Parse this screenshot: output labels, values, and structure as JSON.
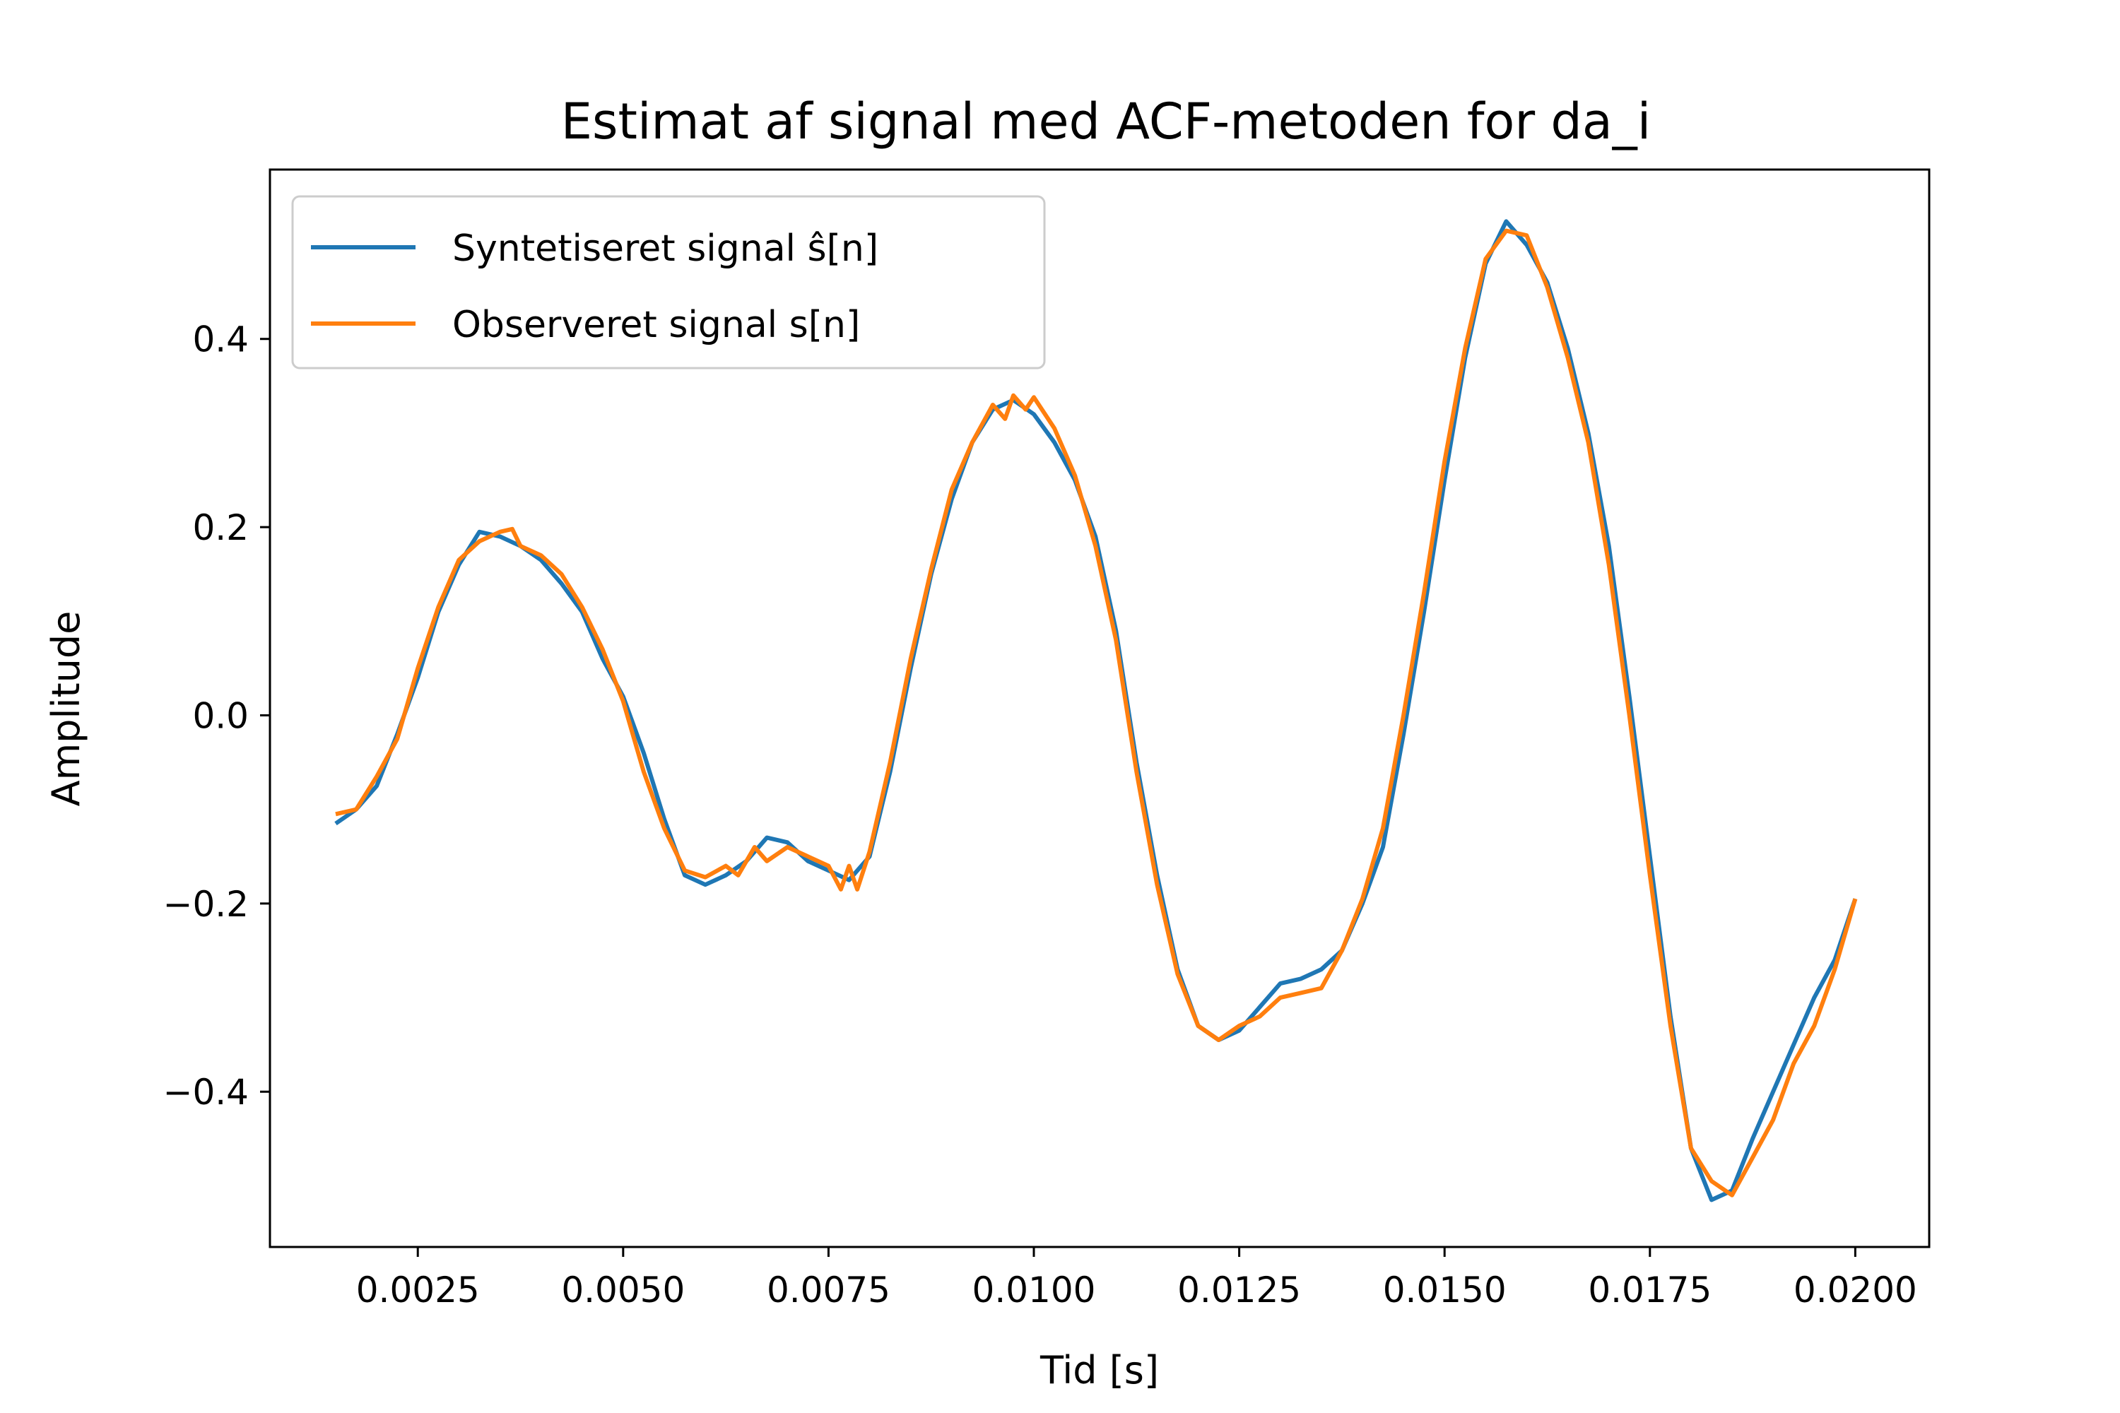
{
  "chart_data": {
    "type": "line",
    "title": "Estimat af signal med ACF-metoden for da_i",
    "xlabel": "Tid [s]",
    "ylabel": "Amplitude",
    "xlim": [
      0.0007,
      0.0209
    ],
    "ylim": [
      -0.565,
      0.58
    ],
    "xticks": [
      {
        "value": 0.0025,
        "label": "0.0025"
      },
      {
        "value": 0.005,
        "label": "0.0050"
      },
      {
        "value": 0.0075,
        "label": "0.0075"
      },
      {
        "value": 0.01,
        "label": "0.0100"
      },
      {
        "value": 0.0125,
        "label": "0.0125"
      },
      {
        "value": 0.015,
        "label": "0.0150"
      },
      {
        "value": 0.0175,
        "label": "0.0175"
      },
      {
        "value": 0.02,
        "label": "0.0200"
      }
    ],
    "yticks": [
      {
        "value": 0.4,
        "label": "0.4"
      },
      {
        "value": 0.2,
        "label": "0.2"
      },
      {
        "value": 0.0,
        "label": "0.0"
      },
      {
        "value": -0.2,
        "label": "−0.2"
      },
      {
        "value": -0.4,
        "label": "−0.4"
      }
    ],
    "grid": false,
    "legend_position": "top-left",
    "series": [
      {
        "name": "Syntetiseret signal ŝ[n]",
        "color": "#1f77b4",
        "points": [
          [
            0.0015,
            -0.115
          ],
          [
            0.00175,
            -0.1
          ],
          [
            0.002,
            -0.075
          ],
          [
            0.00225,
            -0.02
          ],
          [
            0.0025,
            0.04
          ],
          [
            0.00275,
            0.11
          ],
          [
            0.003,
            0.16
          ],
          [
            0.00325,
            0.195
          ],
          [
            0.0035,
            0.19
          ],
          [
            0.00375,
            0.18
          ],
          [
            0.004,
            0.165
          ],
          [
            0.00425,
            0.14
          ],
          [
            0.0045,
            0.11
          ],
          [
            0.00475,
            0.06
          ],
          [
            0.005,
            0.02
          ],
          [
            0.00525,
            -0.04
          ],
          [
            0.0055,
            -0.11
          ],
          [
            0.00575,
            -0.17
          ],
          [
            0.006,
            -0.18
          ],
          [
            0.00625,
            -0.17
          ],
          [
            0.0065,
            -0.155
          ],
          [
            0.00675,
            -0.13
          ],
          [
            0.007,
            -0.135
          ],
          [
            0.00725,
            -0.155
          ],
          [
            0.0075,
            -0.165
          ],
          [
            0.00775,
            -0.175
          ],
          [
            0.008,
            -0.15
          ],
          [
            0.00825,
            -0.06
          ],
          [
            0.0085,
            0.05
          ],
          [
            0.00875,
            0.15
          ],
          [
            0.009,
            0.23
          ],
          [
            0.00925,
            0.29
          ],
          [
            0.0095,
            0.325
          ],
          [
            0.00975,
            0.335
          ],
          [
            0.01,
            0.32
          ],
          [
            0.01025,
            0.29
          ],
          [
            0.0105,
            0.25
          ],
          [
            0.01075,
            0.19
          ],
          [
            0.011,
            0.09
          ],
          [
            0.01125,
            -0.05
          ],
          [
            0.0115,
            -0.17
          ],
          [
            0.01175,
            -0.27
          ],
          [
            0.012,
            -0.33
          ],
          [
            0.01225,
            -0.345
          ],
          [
            0.0125,
            -0.335
          ],
          [
            0.01275,
            -0.31
          ],
          [
            0.013,
            -0.285
          ],
          [
            0.01325,
            -0.28
          ],
          [
            0.0135,
            -0.27
          ],
          [
            0.01375,
            -0.25
          ],
          [
            0.014,
            -0.2
          ],
          [
            0.01425,
            -0.14
          ],
          [
            0.0145,
            -0.02
          ],
          [
            0.01475,
            0.11
          ],
          [
            0.015,
            0.25
          ],
          [
            0.01525,
            0.38
          ],
          [
            0.0155,
            0.48
          ],
          [
            0.01575,
            0.525
          ],
          [
            0.016,
            0.5
          ],
          [
            0.01625,
            0.46
          ],
          [
            0.0165,
            0.39
          ],
          [
            0.01675,
            0.3
          ],
          [
            0.017,
            0.18
          ],
          [
            0.01725,
            0.02
          ],
          [
            0.0175,
            -0.15
          ],
          [
            0.01775,
            -0.32
          ],
          [
            0.018,
            -0.46
          ],
          [
            0.01825,
            -0.515
          ],
          [
            0.0185,
            -0.505
          ],
          [
            0.01875,
            -0.45
          ],
          [
            0.019,
            -0.4
          ],
          [
            0.01925,
            -0.35
          ],
          [
            0.0195,
            -0.3
          ],
          [
            0.01975,
            -0.26
          ],
          [
            0.02,
            -0.195
          ]
        ]
      },
      {
        "name": "Observeret signal s[n]",
        "color": "#ff7f0e",
        "points": [
          [
            0.0015,
            -0.105
          ],
          [
            0.00175,
            -0.1
          ],
          [
            0.002,
            -0.065
          ],
          [
            0.00225,
            -0.025
          ],
          [
            0.0025,
            0.05
          ],
          [
            0.00275,
            0.115
          ],
          [
            0.003,
            0.165
          ],
          [
            0.00325,
            0.185
          ],
          [
            0.0035,
            0.195
          ],
          [
            0.00365,
            0.198
          ],
          [
            0.00375,
            0.18
          ],
          [
            0.004,
            0.17
          ],
          [
            0.00425,
            0.15
          ],
          [
            0.0045,
            0.115
          ],
          [
            0.00475,
            0.07
          ],
          [
            0.005,
            0.015
          ],
          [
            0.00525,
            -0.06
          ],
          [
            0.0055,
            -0.12
          ],
          [
            0.00575,
            -0.165
          ],
          [
            0.006,
            -0.172
          ],
          [
            0.00625,
            -0.16
          ],
          [
            0.0064,
            -0.17
          ],
          [
            0.0066,
            -0.14
          ],
          [
            0.00675,
            -0.155
          ],
          [
            0.007,
            -0.14
          ],
          [
            0.00725,
            -0.15
          ],
          [
            0.0075,
            -0.16
          ],
          [
            0.00765,
            -0.185
          ],
          [
            0.00775,
            -0.16
          ],
          [
            0.00785,
            -0.185
          ],
          [
            0.008,
            -0.145
          ],
          [
            0.00825,
            -0.05
          ],
          [
            0.0085,
            0.06
          ],
          [
            0.00875,
            0.155
          ],
          [
            0.009,
            0.24
          ],
          [
            0.00925,
            0.29
          ],
          [
            0.0095,
            0.33
          ],
          [
            0.00965,
            0.315
          ],
          [
            0.00975,
            0.34
          ],
          [
            0.0099,
            0.325
          ],
          [
            0.01,
            0.338
          ],
          [
            0.01025,
            0.305
          ],
          [
            0.0105,
            0.255
          ],
          [
            0.01075,
            0.18
          ],
          [
            0.011,
            0.08
          ],
          [
            0.01125,
            -0.06
          ],
          [
            0.0115,
            -0.18
          ],
          [
            0.01175,
            -0.275
          ],
          [
            0.012,
            -0.33
          ],
          [
            0.01225,
            -0.345
          ],
          [
            0.0125,
            -0.33
          ],
          [
            0.01275,
            -0.32
          ],
          [
            0.013,
            -0.3
          ],
          [
            0.01325,
            -0.295
          ],
          [
            0.0135,
            -0.29
          ],
          [
            0.01375,
            -0.25
          ],
          [
            0.014,
            -0.195
          ],
          [
            0.01425,
            -0.12
          ],
          [
            0.0145,
            0.0
          ],
          [
            0.01475,
            0.13
          ],
          [
            0.015,
            0.27
          ],
          [
            0.01525,
            0.39
          ],
          [
            0.0155,
            0.485
          ],
          [
            0.01575,
            0.515
          ],
          [
            0.016,
            0.51
          ],
          [
            0.01625,
            0.455
          ],
          [
            0.0165,
            0.38
          ],
          [
            0.01675,
            0.29
          ],
          [
            0.017,
            0.16
          ],
          [
            0.01725,
            0.0
          ],
          [
            0.0175,
            -0.17
          ],
          [
            0.01775,
            -0.33
          ],
          [
            0.018,
            -0.46
          ],
          [
            0.01825,
            -0.495
          ],
          [
            0.0185,
            -0.51
          ],
          [
            0.01875,
            -0.47
          ],
          [
            0.019,
            -0.43
          ],
          [
            0.01925,
            -0.37
          ],
          [
            0.0195,
            -0.33
          ],
          [
            0.01975,
            -0.27
          ],
          [
            0.02,
            -0.195
          ]
        ]
      }
    ]
  }
}
